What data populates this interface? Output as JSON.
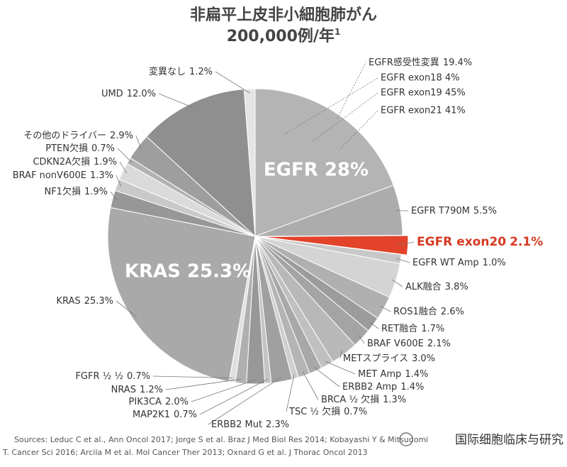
{
  "chart_data": {
    "type": "pie",
    "title": "非扁平上皮非小細胞肺がん",
    "subtitle": "200,000例/年",
    "subtitle_superscript": "1",
    "categories": [
      "EGFR感受性変異",
      "EGFR T790M",
      "EGFR exon20",
      "EGFR WT Amp",
      "ALK融合",
      "ROS1融合",
      "RET融合",
      "BRAF V600E",
      "METスプライス",
      "MET Amp",
      "ERBB2 Amp",
      "BRCA ½ 欠損",
      "TSC ½ 欠損",
      "ERBB2 Mut",
      "MAP2K1",
      "PIK3CA",
      "NRAS",
      "FGFR ½ ½",
      "KRAS",
      "NF1欠損",
      "BRAF nonV600E",
      "CDKN2A欠損",
      "PTEN欠損",
      "その他のドライバー",
      "UMD",
      "変異なし"
    ],
    "values": [
      19.4,
      5.5,
      2.1,
      1.0,
      3.8,
      2.6,
      1.7,
      2.1,
      3.0,
      1.4,
      1.4,
      1.3,
      0.7,
      2.3,
      0.7,
      2.0,
      1.2,
      0.7,
      25.3,
      1.9,
      1.3,
      1.9,
      0.7,
      2.9,
      12.0,
      1.2
    ],
    "value_labels": [
      "19.4%",
      "5.5%",
      "2.1%",
      "1.0%",
      "3.8%",
      "2.6%",
      "1.7%",
      "2.1%",
      "3.0%",
      "1.4%",
      "1.4%",
      "1.3%",
      "0.7%",
      "2.3%",
      "0.7%",
      "2.0%",
      "1.2%",
      "0.7%",
      "25.3%",
      "1.9%",
      "1.3%",
      "1.9%",
      "0.7%",
      "2.9%",
      "12.0%",
      "1.2%"
    ],
    "colors": [
      "#b4b4b4",
      "#acacac",
      "#e2432a",
      "#c8c8c8",
      "#d4d4d4",
      "#b0b0b0",
      "#9c9c9c",
      "#a4a4a4",
      "#b8b8b8",
      "#c0c0c0",
      "#a8a8a8",
      "#b4b4b4",
      "#cfcfcf",
      "#a0a0a0",
      "#c4c4c4",
      "#989898",
      "#b0b0b0",
      "#e0e0e0",
      "#a9a9a9",
      "#979797",
      "#c9c9c9",
      "#dadada",
      "#b2b2b2",
      "#9e9e9e",
      "#8f8f8f",
      "#e4e4e4"
    ],
    "annotations": [
      "EGFR exon18 4%",
      "EGFR exon19 45%",
      "EGFR exon21 41%",
      "EGFR 28%",
      "KRAS 25.3%"
    ],
    "sources": [
      "Sources: Leduc C et al., Ann Oncol 2017;  Jorge S et al. Braz J Med Biol Res 2014; Kobayashi Y & Mitsudomi",
      "T. Cancer Sci 2016; Arcila M et al. Mol Cancer Ther 2013; Oxnard G et al. J Thorac Oncol 2013"
    ],
    "watermark": "国际细胞临床与研究"
  }
}
